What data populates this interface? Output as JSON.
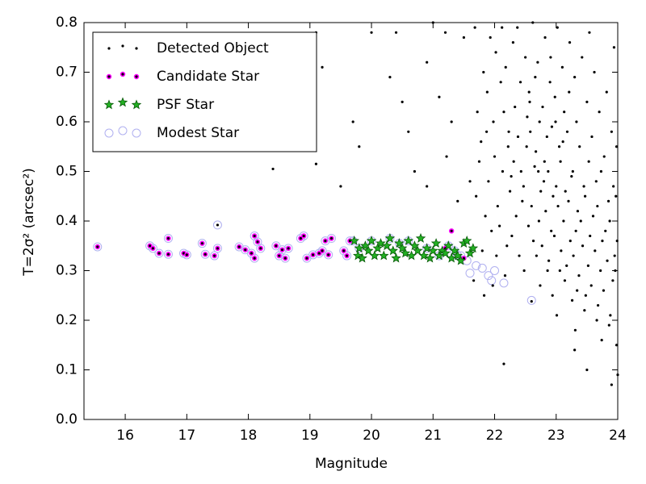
{
  "chart_data": {
    "type": "scatter",
    "xlabel": "Magnitude",
    "ylabel": "T=2σ² (arcsec²)",
    "xlim": [
      15.33,
      24
    ],
    "ylim": [
      0,
      0.8
    ],
    "xticks": [
      16,
      17,
      18,
      19,
      20,
      21,
      22,
      23,
      24
    ],
    "yticks": [
      {
        "value": 0,
        "label": "0.0"
      },
      0.1,
      0.2,
      0.3,
      0.4,
      0.5,
      0.6,
      0.7,
      0.8
    ],
    "legend": "upper left",
    "series": [
      {
        "name": "Modest Star",
        "color": "#b0b0f0",
        "marker": "ring",
        "x": [
          15.55,
          16.4,
          16.45,
          16.55,
          16.7,
          16.7,
          16.95,
          17.0,
          17.25,
          17.3,
          17.45,
          17.5,
          17.85,
          17.95,
          18.05,
          18.1,
          18.1,
          18.15,
          18.2,
          18.45,
          18.5,
          18.55,
          18.6,
          18.65,
          18.85,
          18.9,
          18.95,
          19.05,
          19.15,
          19.2,
          19.25,
          19.3,
          19.35,
          19.55,
          19.6,
          19.65,
          17.5,
          21.6,
          21.7,
          21.8,
          21.9,
          21.95,
          22.0,
          22.15,
          22.6,
          21.45,
          21.55,
          19.7,
          20.0,
          20.3,
          20.6,
          20.9,
          21.1,
          21.25,
          21.35,
          21.4,
          20.45,
          19.8
        ],
        "values": [
          0.348,
          0.35,
          0.345,
          0.335,
          0.365,
          0.333,
          0.335,
          0.332,
          0.355,
          0.333,
          0.33,
          0.345,
          0.348,
          0.342,
          0.335,
          0.37,
          0.325,
          0.358,
          0.345,
          0.35,
          0.33,
          0.342,
          0.325,
          0.345,
          0.365,
          0.37,
          0.325,
          0.332,
          0.335,
          0.34,
          0.36,
          0.332,
          0.365,
          0.34,
          0.33,
          0.36,
          0.392,
          0.295,
          0.31,
          0.305,
          0.29,
          0.28,
          0.3,
          0.275,
          0.24,
          0.33,
          0.32,
          0.36,
          0.36,
          0.365,
          0.36,
          0.345,
          0.33,
          0.35,
          0.34,
          0.33,
          0.355,
          0.345
        ]
      },
      {
        "name": "Candidate Star",
        "color": "#ff00ff",
        "marker": "ringdot",
        "x": [
          15.55,
          16.4,
          16.45,
          16.55,
          16.7,
          16.7,
          16.95,
          17.0,
          17.25,
          17.3,
          17.45,
          17.5,
          17.85,
          17.95,
          18.05,
          18.1,
          18.1,
          18.15,
          18.2,
          18.45,
          18.5,
          18.55,
          18.6,
          18.65,
          18.85,
          18.9,
          18.95,
          19.05,
          19.15,
          19.2,
          19.25,
          19.3,
          19.35,
          19.55,
          19.6,
          19.65,
          21.3,
          21.5,
          21.2
        ],
        "values": [
          0.348,
          0.35,
          0.345,
          0.335,
          0.365,
          0.333,
          0.335,
          0.332,
          0.355,
          0.333,
          0.33,
          0.345,
          0.348,
          0.342,
          0.335,
          0.37,
          0.325,
          0.358,
          0.345,
          0.35,
          0.33,
          0.342,
          0.325,
          0.345,
          0.365,
          0.37,
          0.325,
          0.332,
          0.335,
          0.34,
          0.36,
          0.332,
          0.365,
          0.34,
          0.33,
          0.36,
          0.38,
          0.325,
          0.345
        ]
      },
      {
        "name": "PSF Star",
        "color": "#22b022",
        "marker": "star",
        "x": [
          19.72,
          19.78,
          19.8,
          19.85,
          19.9,
          19.95,
          20.0,
          20.05,
          20.1,
          20.15,
          20.2,
          20.25,
          20.3,
          20.35,
          20.4,
          20.45,
          20.5,
          20.55,
          20.6,
          20.65,
          20.7,
          20.75,
          20.8,
          20.85,
          20.9,
          20.95,
          21.0,
          21.05,
          21.1,
          21.15,
          21.2,
          21.25,
          21.3,
          21.35,
          21.4,
          21.45,
          21.5,
          21.55,
          21.6,
          21.65
        ],
        "values": [
          0.36,
          0.33,
          0.345,
          0.325,
          0.35,
          0.34,
          0.36,
          0.33,
          0.345,
          0.355,
          0.33,
          0.35,
          0.365,
          0.34,
          0.325,
          0.355,
          0.345,
          0.335,
          0.36,
          0.33,
          0.35,
          0.34,
          0.365,
          0.33,
          0.345,
          0.325,
          0.34,
          0.355,
          0.33,
          0.34,
          0.335,
          0.35,
          0.325,
          0.34,
          0.33,
          0.32,
          0.355,
          0.36,
          0.335,
          0.345
        ]
      },
      {
        "name": "Detected Object",
        "color": "#000000",
        "marker": "dot",
        "x": [
          18.4,
          19.5,
          19.7,
          19.8,
          20.0,
          20.3,
          20.5,
          20.6,
          20.9,
          21.0,
          21.1,
          21.2,
          21.22,
          21.3,
          21.4,
          21.6,
          20.7,
          20.9,
          19.2,
          19.1,
          19.1,
          17.5,
          22.15,
          22.6,
          23.3,
          23.9,
          24.0,
          23.5,
          20.4,
          21.5,
          21.68,
          21.72,
          21.7,
          21.75,
          21.66,
          21.82,
          21.78,
          21.85,
          21.8,
          21.83,
          21.88,
          21.93,
          21.9,
          21.95,
          21.87,
          22.02,
          21.98,
          22.05,
          22.0,
          22.03,
          21.97,
          22.1,
          22.13,
          22.08,
          22.15,
          22.12,
          22.22,
          22.18,
          22.25,
          22.2,
          22.17,
          22.23,
          22.3,
          22.33,
          22.27,
          22.35,
          22.31,
          22.28,
          22.42,
          22.38,
          22.45,
          22.4,
          22.37,
          22.43,
          22.5,
          22.53,
          22.47,
          22.55,
          22.52,
          22.48,
          22.56,
          22.62,
          22.58,
          22.65,
          22.6,
          22.63,
          22.57,
          22.66,
          22.7,
          22.73,
          22.67,
          22.75,
          22.72,
          22.68,
          22.74,
          22.71,
          22.82,
          22.78,
          22.85,
          22.8,
          22.83,
          22.77,
          22.86,
          22.81,
          22.9,
          22.93,
          22.87,
          22.95,
          22.92,
          22.88,
          22.94,
          22.91,
          23.02,
          22.98,
          23.05,
          23.0,
          23.03,
          22.97,
          23.06,
          23.01,
          22.99,
          23.1,
          23.13,
          23.07,
          23.15,
          23.12,
          23.08,
          23.14,
          23.11,
          23.22,
          23.18,
          23.25,
          23.2,
          23.23,
          23.17,
          23.26,
          23.21,
          23.3,
          23.33,
          23.27,
          23.35,
          23.32,
          23.28,
          23.34,
          23.31,
          23.42,
          23.38,
          23.45,
          23.4,
          23.43,
          23.37,
          23.46,
          23.5,
          23.53,
          23.47,
          23.55,
          23.52,
          23.48,
          23.54,
          23.62,
          23.58,
          23.65,
          23.6,
          23.63,
          23.57,
          23.66,
          23.7,
          23.73,
          23.67,
          23.75,
          23.72,
          23.68,
          23.74,
          23.82,
          23.78,
          23.85,
          23.8,
          23.83,
          23.77,
          23.86,
          23.9,
          23.93,
          23.87,
          23.95,
          23.92,
          23.88,
          23.94,
          23.98,
          23.97,
          23.99,
          23.96,
          23.98
        ],
        "values": [
          0.505,
          0.47,
          0.6,
          0.55,
          0.78,
          0.69,
          0.64,
          0.58,
          0.72,
          0.8,
          0.65,
          0.78,
          0.53,
          0.6,
          0.44,
          0.48,
          0.5,
          0.47,
          0.71,
          0.515,
          0.78,
          0.392,
          0.112,
          0.238,
          0.14,
          0.07,
          0.09,
          0.1,
          0.78,
          0.77,
          0.79,
          0.62,
          0.45,
          0.52,
          0.28,
          0.7,
          0.56,
          0.41,
          0.34,
          0.25,
          0.66,
          0.77,
          0.48,
          0.38,
          0.58,
          0.74,
          0.6,
          0.43,
          0.53,
          0.33,
          0.27,
          0.68,
          0.5,
          0.39,
          0.62,
          0.79,
          0.55,
          0.71,
          0.46,
          0.35,
          0.29,
          0.58,
          0.76,
          0.63,
          0.49,
          0.41,
          0.52,
          0.37,
          0.68,
          0.57,
          0.44,
          0.33,
          0.79,
          0.5,
          0.73,
          0.61,
          0.47,
          0.39,
          0.55,
          0.3,
          0.66,
          0.8,
          0.58,
          0.51,
          0.43,
          0.36,
          0.64,
          0.69,
          0.72,
          0.6,
          0.54,
          0.46,
          0.4,
          0.33,
          0.27,
          0.5,
          0.77,
          0.63,
          0.57,
          0.48,
          0.42,
          0.35,
          0.3,
          0.52,
          0.68,
          0.59,
          0.5,
          0.45,
          0.38,
          0.32,
          0.25,
          0.73,
          0.79,
          0.65,
          0.55,
          0.47,
          0.43,
          0.37,
          0.3,
          0.21,
          0.6,
          0.71,
          0.62,
          0.52,
          0.46,
          0.4,
          0.34,
          0.28,
          0.56,
          0.76,
          0.58,
          0.49,
          0.44,
          0.36,
          0.31,
          0.24,
          0.66,
          0.69,
          0.6,
          0.5,
          0.42,
          0.38,
          0.33,
          0.26,
          0.18,
          0.73,
          0.55,
          0.47,
          0.4,
          0.35,
          0.29,
          0.22,
          0.64,
          0.52,
          0.45,
          0.37,
          0.31,
          0.25,
          0.78,
          0.7,
          0.57,
          0.48,
          0.41,
          0.34,
          0.27,
          0.2,
          0.62,
          0.5,
          0.43,
          0.36,
          0.3,
          0.23,
          0.16,
          0.66,
          0.53,
          0.44,
          0.38,
          0.32,
          0.26,
          0.19,
          0.58,
          0.47,
          0.4,
          0.33,
          0.28,
          0.21,
          0.75,
          0.55,
          0.45,
          0.36,
          0.3,
          0.15
        ]
      }
    ],
    "legend_order": [
      3,
      1,
      2,
      0
    ]
  }
}
